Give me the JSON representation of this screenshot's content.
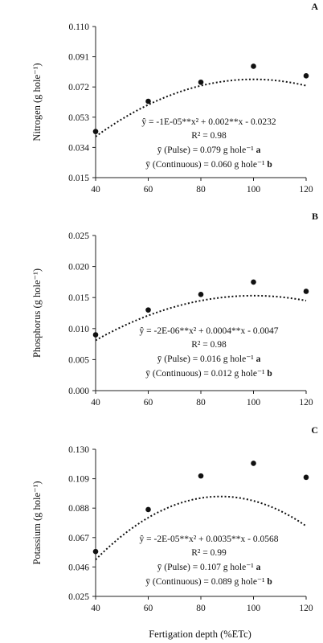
{
  "figure": {
    "xlabel": "Fertigation depth (%ETc)"
  },
  "chart_data": [
    {
      "type": "scatter",
      "panel": "A",
      "title": "",
      "xlabel": "",
      "ylabel": "Nitrogen (g hole⁻¹)",
      "xlim": [
        40,
        120
      ],
      "ylim": [
        0.015,
        0.11
      ],
      "x_ticks": [
        "40",
        "60",
        "80",
        "100",
        "120"
      ],
      "y_ticks": [
        "0.015",
        "0.034",
        "0.053",
        "0.072",
        "0.091",
        "0.110"
      ],
      "x": [
        40,
        60,
        80,
        100,
        120
      ],
      "values": [
        0.044,
        0.063,
        0.075,
        0.085,
        0.079
      ],
      "trendline": {
        "type": "quadratic",
        "a": -1e-05,
        "b": 0.002,
        "c": -0.0232
      },
      "annotations": [
        {
          "text": "ŷ = -1E-05**x² + 0.002**x - 0.0232"
        },
        {
          "text": "R² = 0.98"
        },
        {
          "text": "ȳ (Pulse) =  0.079 g hole⁻¹ ",
          "bold": "a"
        },
        {
          "text": "ȳ (Continuous) =  0.060 g hole⁻¹ ",
          "bold": "b"
        }
      ],
      "grid": false,
      "legend": "none"
    },
    {
      "type": "scatter",
      "panel": "B",
      "title": "",
      "xlabel": "",
      "ylabel": "Phosphorus (g hole⁻¹)",
      "xlim": [
        40,
        120
      ],
      "ylim": [
        0.0,
        0.025
      ],
      "x_ticks": [
        "40",
        "60",
        "80",
        "100",
        "120"
      ],
      "y_ticks": [
        "0.000",
        "0.005",
        "0.010",
        "0.015",
        "0.020",
        "0.025"
      ],
      "x": [
        40,
        60,
        80,
        100,
        120
      ],
      "values": [
        0.009,
        0.013,
        0.0155,
        0.0175,
        0.016
      ],
      "trendline": {
        "type": "quadratic",
        "a": -2e-06,
        "b": 0.0004,
        "c": -0.0047
      },
      "annotations": [
        {
          "text": "ŷ = -2E-06**x² + 0.0004**x - 0.0047"
        },
        {
          "text": "R² = 0.98"
        },
        {
          "text": "ȳ (Pulse) =  0.016 g hole⁻¹ ",
          "bold": "a"
        },
        {
          "text": "ȳ (Continuous) =  0.012 g hole⁻¹ ",
          "bold": "b"
        }
      ],
      "grid": false,
      "legend": "none"
    },
    {
      "type": "scatter",
      "panel": "C",
      "title": "",
      "xlabel": "Fertigation depth (%ETc)",
      "ylabel": "Potassium (g hole⁻¹)",
      "xlim": [
        40,
        120
      ],
      "ylim": [
        0.025,
        0.13
      ],
      "x_ticks": [
        "40",
        "60",
        "80",
        "100",
        "120"
      ],
      "y_ticks": [
        "0.025",
        "0.046",
        "0.067",
        "0.088",
        "0.109",
        "0.130"
      ],
      "x": [
        40,
        60,
        80,
        100,
        120
      ],
      "values": [
        0.057,
        0.087,
        0.111,
        0.12,
        0.11
      ],
      "trendline": {
        "type": "quadratic",
        "a": -2e-05,
        "b": 0.0035,
        "c": -0.0568
      },
      "annotations": [
        {
          "text": "ŷ = -2E-05**x² + 0.0035**x - 0.0568"
        },
        {
          "text": "R² = 0.99"
        },
        {
          "text": "ȳ (Pulse) =  0.107 g hole⁻¹ ",
          "bold": "a"
        },
        {
          "text": "ȳ (Continuous) =  0.089 g hole⁻¹ ",
          "bold": "b"
        }
      ],
      "grid": false,
      "legend": "none"
    }
  ]
}
